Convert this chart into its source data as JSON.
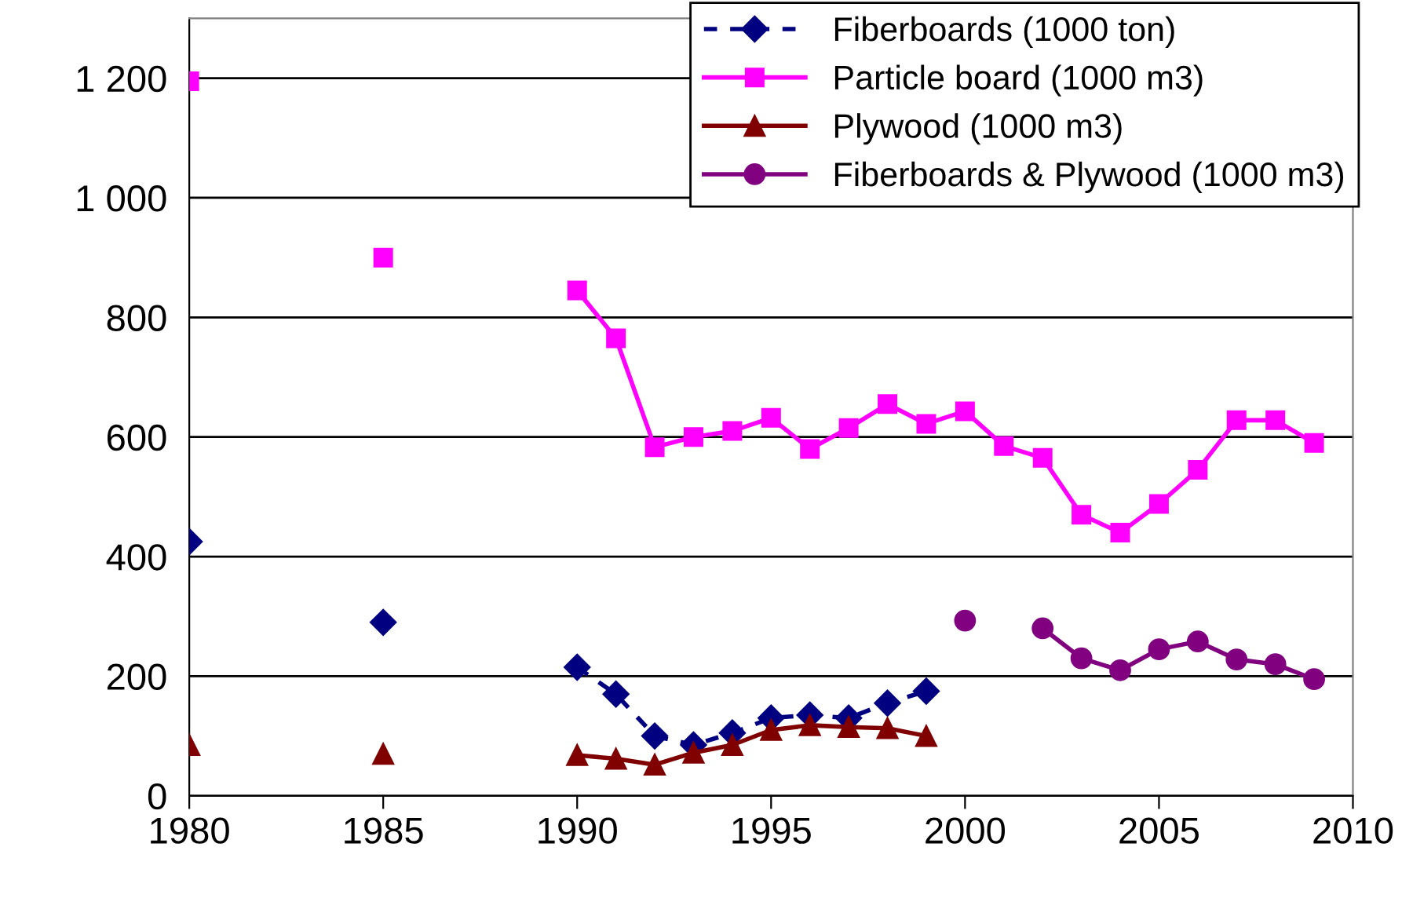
{
  "chart_data": {
    "type": "line",
    "xlim": [
      1980,
      2010
    ],
    "xticks": [
      1980,
      1985,
      1990,
      1995,
      2000,
      2005,
      2010
    ],
    "ylim": [
      0,
      1300
    ],
    "yticks": [
      0,
      200,
      400,
      600,
      800,
      {
        "value": 1000,
        "label": "1 000"
      },
      {
        "value": 1200,
        "label": "1 200"
      }
    ],
    "grid": "y",
    "legend": "top right",
    "x": [
      1980,
      1981,
      1982,
      1983,
      1984,
      1985,
      1986,
      1987,
      1988,
      1989,
      1990,
      1991,
      1992,
      1993,
      1994,
      1995,
      1996,
      1997,
      1998,
      1999,
      2000,
      2001,
      2002,
      2003,
      2004,
      2005,
      2006,
      2007,
      2008,
      2009
    ],
    "series": [
      {
        "name": "Fiberboards (1000 ton)",
        "color": "#000080",
        "marker": "diamond",
        "line_style": "dashed",
        "values": [
          425,
          null,
          null,
          null,
          null,
          290,
          null,
          null,
          null,
          null,
          215,
          170,
          100,
          85,
          105,
          130,
          135,
          130,
          155,
          175,
          null,
          null,
          null,
          null,
          null,
          null,
          null,
          null,
          null,
          null
        ]
      },
      {
        "name": "Particle board (1000 m3)",
        "color": "#ff00ff",
        "marker": "square",
        "line_style": "solid",
        "values": [
          1195,
          null,
          null,
          null,
          null,
          900,
          null,
          null,
          null,
          null,
          845,
          765,
          583,
          600,
          610,
          632,
          580,
          615,
          655,
          622,
          643,
          585,
          565,
          470,
          440,
          488,
          545,
          628,
          628,
          590
        ]
      },
      {
        "name": "Plywood (1000 m3)",
        "color": "#800000",
        "marker": "triangle",
        "line_style": "solid",
        "values": [
          85,
          null,
          null,
          null,
          null,
          70,
          null,
          null,
          null,
          null,
          68,
          62,
          52,
          72,
          85,
          110,
          118,
          115,
          113,
          100,
          null,
          null,
          null,
          null,
          null,
          null,
          null,
          null,
          null,
          null
        ]
      },
      {
        "name": "Fiberboards & Plywood (1000 m3)",
        "color": "#800080",
        "marker": "circle",
        "line_style": "solid",
        "values": [
          null,
          null,
          null,
          null,
          null,
          null,
          null,
          null,
          null,
          null,
          null,
          null,
          null,
          null,
          null,
          null,
          null,
          null,
          null,
          null,
          293,
          null,
          280,
          230,
          210,
          245,
          258,
          228,
          220,
          195
        ]
      }
    ]
  }
}
